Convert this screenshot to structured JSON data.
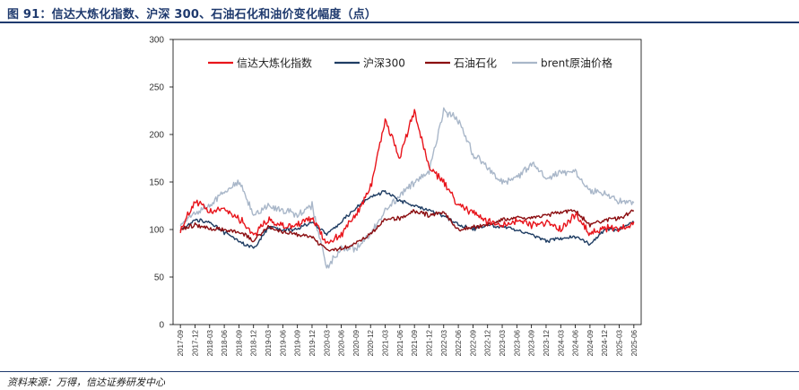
{
  "header": {
    "title": "图 91：信达大炼化指数、沪深 300、石油石化和油价变化幅度（点）"
  },
  "footer": {
    "source": "资料来源：万得，信达证券研发中心"
  },
  "colors": {
    "series1": "#e8141b",
    "series2": "#1f3d63",
    "series3": "#8b0d10",
    "series4": "#a9b7c9",
    "rule": "#1f3a6e"
  },
  "chart_data": {
    "type": "line",
    "title": "",
    "xlabel": "",
    "ylabel": "",
    "ylim": [
      0,
      300
    ],
    "yticks": [
      0,
      50,
      100,
      150,
      200,
      250,
      300
    ],
    "categories": [
      "2017-09",
      "2017-12",
      "2018-03",
      "2018-06",
      "2018-09",
      "2018-12",
      "2019-03",
      "2019-06",
      "2019-09",
      "2019-12",
      "2020-03",
      "2020-06",
      "2020-09",
      "2020-12",
      "2021-03",
      "2021-06",
      "2021-09",
      "2021-12",
      "2022-03",
      "2022-06",
      "2022-09",
      "2022-12",
      "2023-03",
      "2023-06",
      "2023-09",
      "2023-12",
      "2024-03",
      "2024-06",
      "2024-09",
      "2024-12",
      "2025-03",
      "2025-06"
    ],
    "legend_position": "top",
    "series": [
      {
        "name": "信达大炼化指数",
        "color": "#e8141b",
        "values": [
          100,
          130,
          118,
          122,
          112,
          95,
          110,
          103,
          105,
          112,
          86,
          95,
          115,
          145,
          215,
          175,
          225,
          165,
          150,
          125,
          118,
          108,
          105,
          110,
          105,
          108,
          100,
          115,
          95,
          102,
          100,
          108
        ]
      },
      {
        "name": "沪深300",
        "color": "#1f3d63",
        "values": [
          100,
          110,
          108,
          97,
          88,
          80,
          102,
          100,
          100,
          108,
          95,
          108,
          122,
          135,
          140,
          130,
          125,
          120,
          115,
          105,
          100,
          105,
          102,
          100,
          95,
          88,
          90,
          92,
          85,
          100,
          100,
          108
        ]
      },
      {
        "name": "石油石化",
        "color": "#8b0d10",
        "values": [
          100,
          105,
          100,
          100,
          98,
          88,
          103,
          97,
          95,
          92,
          78,
          80,
          85,
          95,
          110,
          112,
          120,
          115,
          118,
          100,
          102,
          105,
          110,
          112,
          112,
          115,
          118,
          120,
          105,
          110,
          112,
          120
        ]
      },
      {
        "name": "brent原油价格",
        "color": "#a9b7c9",
        "values": [
          105,
          118,
          125,
          140,
          150,
          115,
          125,
          120,
          115,
          125,
          60,
          80,
          80,
          95,
          120,
          135,
          150,
          160,
          225,
          215,
          180,
          165,
          150,
          155,
          170,
          155,
          160,
          162,
          140,
          138,
          130,
          128
        ]
      }
    ]
  }
}
